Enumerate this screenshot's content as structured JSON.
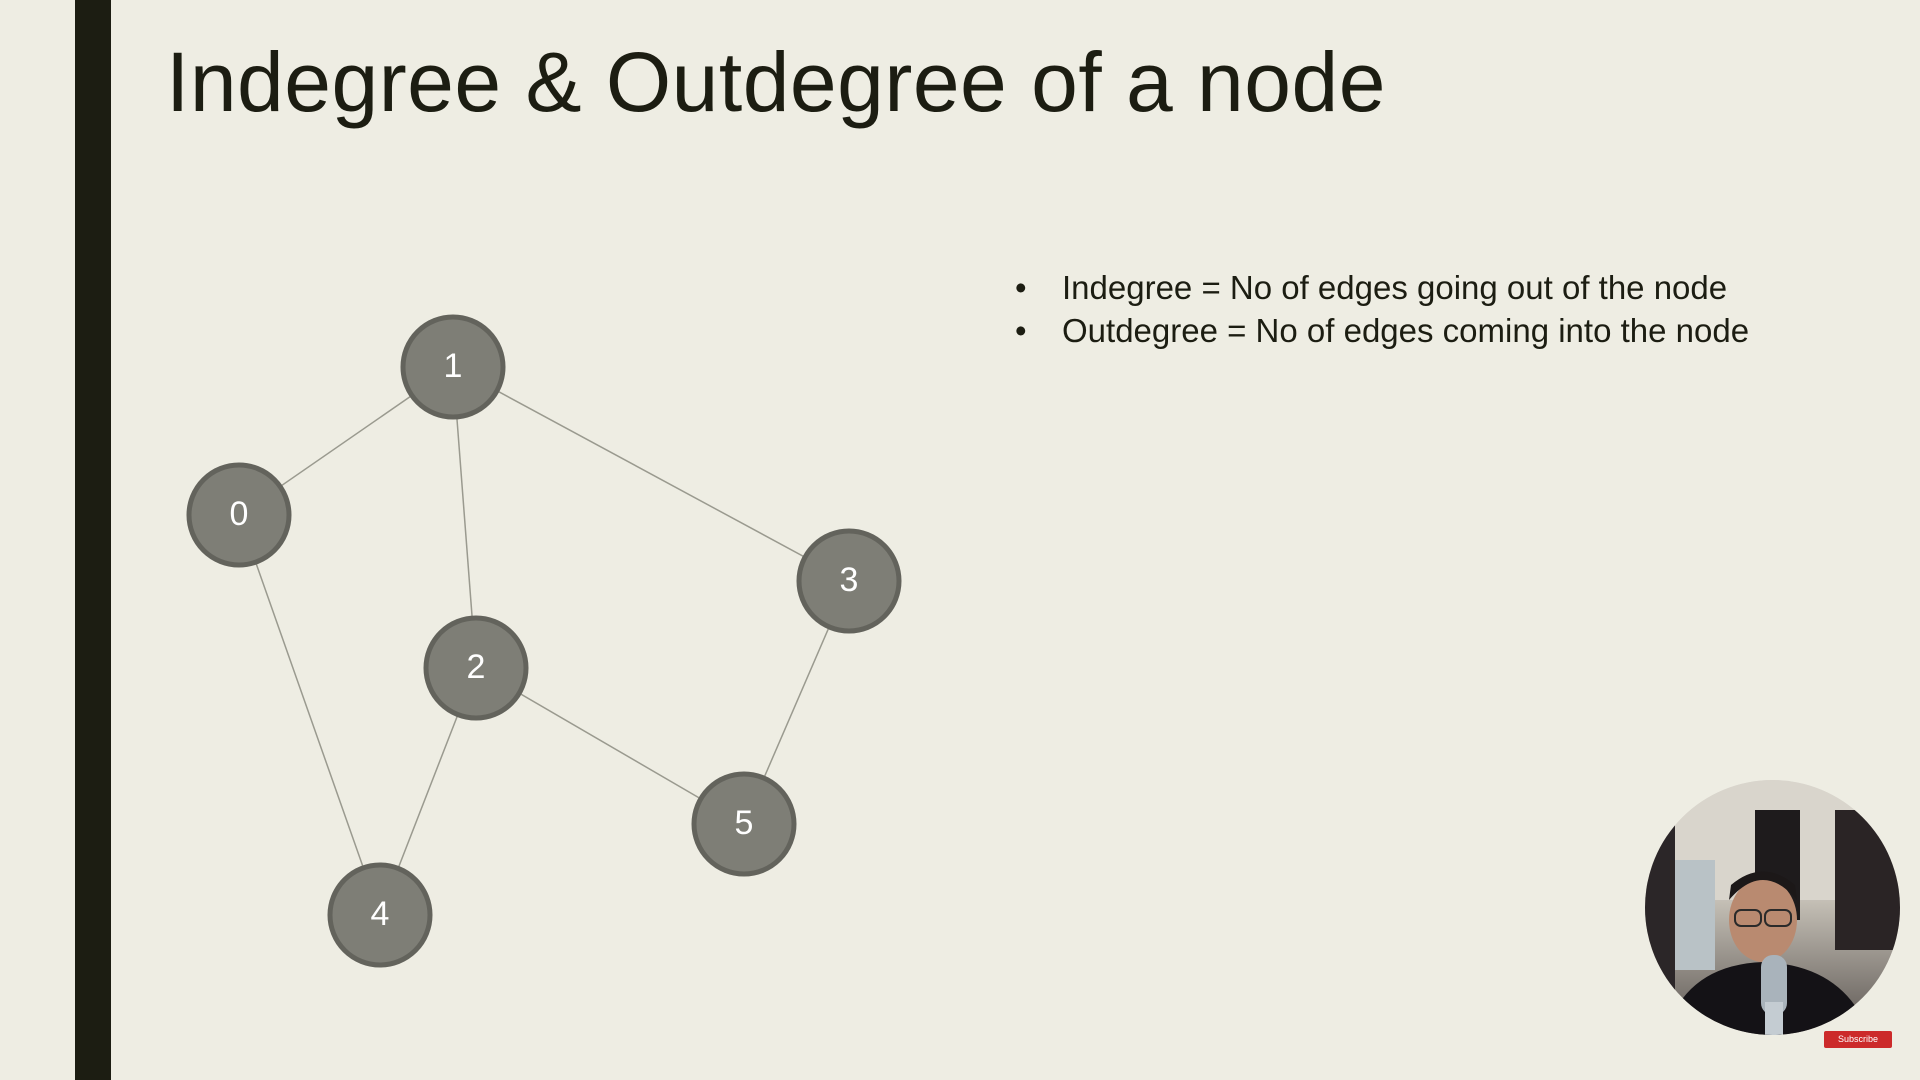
{
  "slide": {
    "title": "Indegree & Outdegree of a node",
    "bullets": [
      "Indegree = No of edges going out of the node",
      "Outdegree = No of edges coming into the node"
    ]
  },
  "graph": {
    "nodes": [
      "0",
      "1",
      "2",
      "3",
      "4",
      "5"
    ],
    "edges": [
      [
        "0",
        "1"
      ],
      [
        "1",
        "2"
      ],
      [
        "1",
        "3"
      ],
      [
        "0",
        "4"
      ],
      [
        "2",
        "4"
      ],
      [
        "2",
        "5"
      ],
      [
        "3",
        "5"
      ]
    ]
  },
  "overlay": {
    "subscribe_label": "Subscribe"
  },
  "colors": {
    "background": "#eeede3",
    "accent_bar": "#1c1d12",
    "node_fill": "#7e7e76",
    "node_stroke": "#63635c",
    "edge": "#9a9a8f",
    "subscribe_bg": "#cc2a2a"
  }
}
